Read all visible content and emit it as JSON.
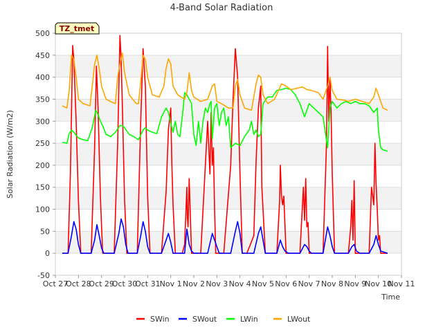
{
  "chart_data": {
    "type": "line",
    "title": "4-Band Solar Radiation",
    "xlabel": "Time",
    "ylabel": "Solar Radiation (W/m2)",
    "station_label": "TZ_tmet",
    "xlim": [
      0,
      15
    ],
    "ylim": [
      -50,
      500
    ],
    "x_tick_labels": [
      "Oct 27",
      "Oct 28",
      "Oct 29",
      "Oct 30",
      "Oct 31",
      "Nov 1",
      "Nov 2",
      "Nov 3",
      "Nov 4",
      "Nov 5",
      "Nov 6",
      "Nov 7",
      "Nov 8",
      "Nov 9",
      "Nov 10",
      "Nov 11"
    ],
    "y_ticks": [
      -50,
      0,
      50,
      100,
      150,
      200,
      250,
      300,
      350,
      400,
      450,
      500
    ],
    "grid": true,
    "legend_position": "bottom-center",
    "series": [
      {
        "name": "SWin",
        "color": "#ff0000",
        "x": [
          0.3,
          0.55,
          0.65,
          0.75,
          0.8,
          0.9,
          1.0,
          1.1,
          1.3,
          1.55,
          1.7,
          1.78,
          1.85,
          1.95,
          2.05,
          2.3,
          2.55,
          2.7,
          2.8,
          2.85,
          2.9,
          3.0,
          3.1,
          3.3,
          3.55,
          3.7,
          3.8,
          3.9,
          4.0,
          4.1,
          4.3,
          4.6,
          4.8,
          4.9,
          5.0,
          5.05,
          5.1,
          5.2,
          5.3,
          5.5,
          5.6,
          5.7,
          5.72,
          5.75,
          5.8,
          5.9,
          6.0,
          6.1,
          6.3,
          6.6,
          6.7,
          6.75,
          6.8,
          6.85,
          6.9,
          6.95,
          7.1,
          7.3,
          7.6,
          7.7,
          7.8,
          7.9,
          8.0,
          8.1,
          8.3,
          8.6,
          8.7,
          8.8,
          8.9,
          8.95,
          9.0,
          9.1,
          9.3,
          9.6,
          9.72,
          9.75,
          9.8,
          9.85,
          9.9,
          10.0,
          10.3,
          10.6,
          10.75,
          10.8,
          10.85,
          10.9,
          10.95,
          11.0,
          11.3,
          11.6,
          11.75,
          11.8,
          11.85,
          11.9,
          11.95,
          12.0,
          12.1,
          12.3,
          12.7,
          12.8,
          12.85,
          12.9,
          12.95,
          13.0,
          13.2,
          13.6,
          13.7,
          13.8,
          13.85,
          13.9,
          13.95,
          14.0,
          14.05,
          14.1,
          14.4
        ],
        "values": [
          0,
          0,
          180,
          472,
          440,
          300,
          120,
          0,
          0,
          0,
          240,
          425,
          330,
          130,
          0,
          0,
          0,
          250,
          495,
          440,
          340,
          120,
          0,
          0,
          0,
          300,
          465,
          380,
          130,
          0,
          0,
          0,
          140,
          280,
          330,
          200,
          110,
          0,
          0,
          0,
          20,
          150,
          80,
          60,
          170,
          0,
          0,
          0,
          0,
          300,
          180,
          320,
          200,
          240,
          100,
          0,
          0,
          0,
          200,
          350,
          465,
          400,
          180,
          0,
          0,
          40,
          210,
          330,
          380,
          150,
          100,
          0,
          0,
          0,
          120,
          200,
          130,
          110,
          130,
          0,
          0,
          0,
          150,
          75,
          170,
          60,
          70,
          0,
          0,
          0,
          250,
          470,
          300,
          400,
          320,
          180,
          0,
          0,
          0,
          60,
          120,
          30,
          165,
          0,
          0,
          0,
          150,
          110,
          250,
          160,
          100,
          30,
          40,
          0,
          0
        ]
      },
      {
        "name": "SWout",
        "color": "#0000ff",
        "x": [
          0.3,
          0.55,
          0.7,
          0.8,
          0.9,
          1.0,
          1.1,
          1.3,
          1.55,
          1.7,
          1.8,
          1.9,
          2.0,
          2.1,
          2.3,
          2.55,
          2.75,
          2.85,
          2.95,
          3.05,
          3.15,
          3.3,
          3.55,
          3.7,
          3.8,
          3.9,
          4.0,
          4.1,
          4.3,
          4.6,
          4.8,
          4.9,
          5.0,
          5.1,
          5.3,
          5.6,
          5.7,
          5.8,
          5.9,
          6.0,
          6.3,
          6.6,
          6.8,
          6.9,
          7.0,
          7.1,
          7.3,
          7.6,
          7.8,
          7.9,
          8.0,
          8.1,
          8.3,
          8.6,
          8.8,
          8.9,
          9.0,
          9.1,
          9.3,
          9.6,
          9.75,
          9.85,
          9.95,
          10.1,
          10.3,
          10.6,
          10.8,
          10.9,
          11.0,
          11.1,
          11.3,
          11.6,
          11.8,
          11.9,
          12.0,
          12.1,
          12.3,
          12.7,
          12.85,
          12.95,
          13.05,
          13.2,
          13.6,
          13.8,
          13.9,
          14.0,
          14.1,
          14.4
        ],
        "values": [
          0,
          0,
          40,
          72,
          55,
          20,
          0,
          0,
          0,
          30,
          65,
          40,
          12,
          0,
          0,
          0,
          45,
          78,
          60,
          20,
          0,
          0,
          0,
          40,
          72,
          50,
          15,
          0,
          0,
          0,
          30,
          45,
          25,
          0,
          0,
          0,
          55,
          20,
          5,
          0,
          0,
          0,
          45,
          30,
          15,
          0,
          0,
          0,
          50,
          72,
          45,
          0,
          0,
          0,
          45,
          60,
          30,
          0,
          0,
          0,
          30,
          15,
          5,
          0,
          0,
          0,
          20,
          15,
          5,
          0,
          0,
          0,
          60,
          40,
          15,
          0,
          0,
          0,
          15,
          20,
          5,
          0,
          0,
          20,
          40,
          20,
          5,
          0
        ]
      },
      {
        "name": "LWin",
        "color": "#00ff00",
        "x": [
          0.3,
          0.5,
          0.6,
          0.7,
          0.8,
          0.9,
          1.0,
          1.2,
          1.4,
          1.6,
          1.75,
          1.85,
          1.95,
          2.05,
          2.2,
          2.4,
          2.6,
          2.8,
          2.9,
          3.0,
          3.2,
          3.4,
          3.6,
          3.8,
          3.9,
          4.0,
          4.2,
          4.4,
          4.6,
          4.8,
          4.9,
          5.0,
          5.1,
          5.2,
          5.3,
          5.4,
          5.55,
          5.6,
          5.7,
          5.8,
          5.9,
          6.0,
          6.1,
          6.2,
          6.3,
          6.4,
          6.5,
          6.6,
          6.7,
          6.75,
          6.8,
          6.9,
          7.0,
          7.1,
          7.2,
          7.3,
          7.4,
          7.5,
          7.6,
          7.8,
          8.0,
          8.2,
          8.4,
          8.5,
          8.6,
          8.7,
          8.8,
          8.9,
          9.0,
          9.2,
          9.4,
          9.6,
          9.8,
          10.0,
          10.2,
          10.4,
          10.6,
          10.8,
          11.0,
          11.2,
          11.4,
          11.6,
          11.8,
          11.9,
          12.0,
          12.2,
          12.4,
          12.6,
          12.8,
          13.0,
          13.2,
          13.4,
          13.6,
          13.8,
          13.95,
          14.0,
          14.1,
          14.2,
          14.4
        ],
        "values": [
          252,
          250,
          272,
          280,
          275,
          268,
          262,
          258,
          256,
          285,
          325,
          315,
          300,
          290,
          270,
          265,
          275,
          290,
          290,
          285,
          270,
          265,
          258,
          280,
          285,
          280,
          275,
          272,
          310,
          330,
          320,
          295,
          275,
          300,
          270,
          265,
          335,
          365,
          360,
          350,
          340,
          270,
          245,
          300,
          250,
          300,
          330,
          320,
          340,
          345,
          260,
          330,
          340,
          290,
          320,
          330,
          290,
          310,
          240,
          250,
          245,
          265,
          280,
          300,
          270,
          280,
          265,
          270,
          340,
          355,
          355,
          370,
          372,
          375,
          372,
          360,
          340,
          310,
          340,
          330,
          320,
          310,
          240,
          330,
          345,
          330,
          340,
          345,
          340,
          345,
          340,
          340,
          335,
          320,
          330,
          280,
          240,
          235,
          232
        ]
      },
      {
        "name": "LWout",
        "color": "#ffa500",
        "x": [
          0.3,
          0.5,
          0.6,
          0.7,
          0.8,
          0.9,
          1.0,
          1.2,
          1.5,
          1.6,
          1.7,
          1.8,
          1.9,
          2.0,
          2.2,
          2.5,
          2.6,
          2.7,
          2.8,
          2.9,
          3.0,
          3.2,
          3.5,
          3.6,
          3.7,
          3.8,
          3.9,
          4.0,
          4.2,
          4.5,
          4.7,
          4.8,
          4.9,
          5.0,
          5.1,
          5.3,
          5.6,
          5.7,
          5.8,
          5.9,
          6.0,
          6.3,
          6.6,
          6.8,
          6.9,
          7.0,
          7.2,
          7.5,
          7.7,
          7.8,
          7.9,
          8.0,
          8.2,
          8.5,
          8.7,
          8.8,
          8.9,
          9.0,
          9.2,
          9.5,
          9.8,
          10.0,
          10.2,
          10.5,
          10.7,
          10.9,
          11.1,
          11.4,
          11.6,
          11.8,
          11.9,
          12.0,
          12.2,
          12.5,
          12.7,
          13.0,
          13.3,
          13.6,
          13.8,
          13.9,
          14.0,
          14.2,
          14.4
        ],
        "values": [
          335,
          330,
          370,
          450,
          440,
          400,
          350,
          340,
          335,
          380,
          430,
          450,
          420,
          380,
          350,
          342,
          340,
          400,
          430,
          455,
          410,
          360,
          340,
          340,
          390,
          450,
          440,
          400,
          360,
          355,
          380,
          420,
          442,
          430,
          380,
          360,
          350,
          365,
          410,
          370,
          355,
          345,
          350,
          380,
          385,
          345,
          340,
          330,
          330,
          380,
          395,
          360,
          330,
          325,
          385,
          405,
          400,
          360,
          340,
          350,
          385,
          380,
          372,
          375,
          378,
          372,
          370,
          365,
          350,
          380,
          400,
          370,
          350,
          348,
          345,
          350,
          345,
          340,
          355,
          375,
          360,
          330,
          325
        ]
      }
    ]
  }
}
